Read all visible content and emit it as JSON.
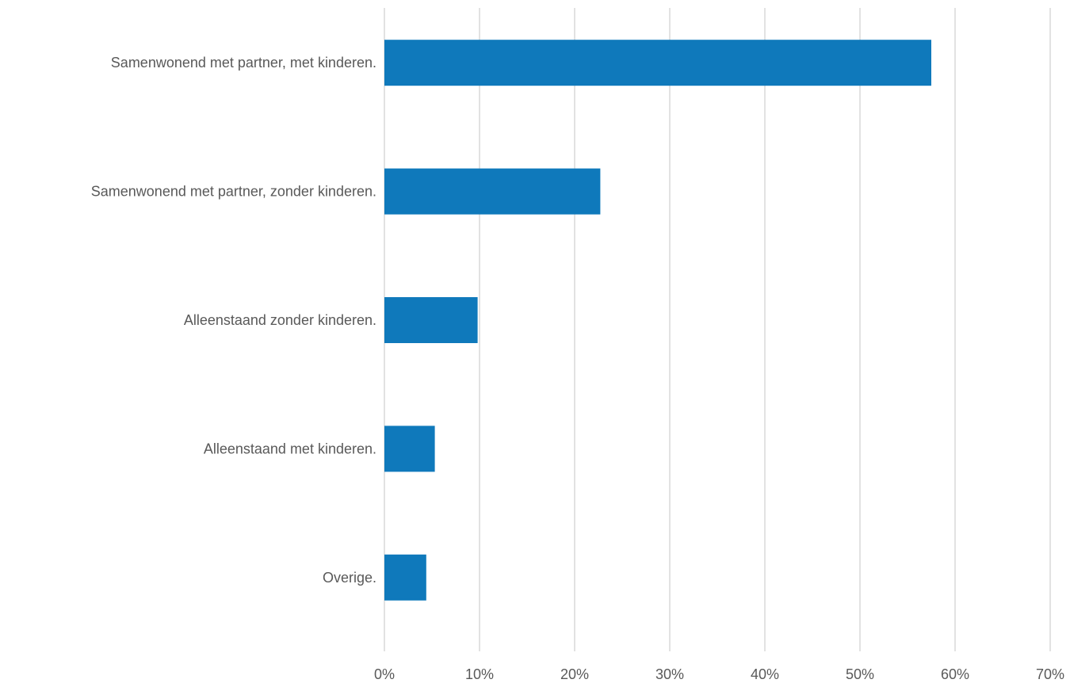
{
  "chart_data": {
    "type": "bar",
    "orientation": "horizontal",
    "title": "",
    "xlabel": "",
    "ylabel": "",
    "categories": [
      "Samenwonend met partner, met kinderen.",
      "Samenwonend met partner, zonder kinderen.",
      "Alleenstaand zonder kinderen.",
      "Alleenstaand met kinderen.",
      "Overige."
    ],
    "values": [
      57.5,
      22.7,
      9.8,
      5.3,
      4.4
    ],
    "value_unit": "%",
    "xlim": [
      0,
      70
    ],
    "x_ticks": [
      0,
      10,
      20,
      30,
      40,
      50,
      60,
      70
    ],
    "x_tick_labels": [
      "0%",
      "10%",
      "20%",
      "30%",
      "40%",
      "50%",
      "60%",
      "70%"
    ],
    "grid": "vertical",
    "legend": "none",
    "bar_color": "#0f79bb"
  }
}
